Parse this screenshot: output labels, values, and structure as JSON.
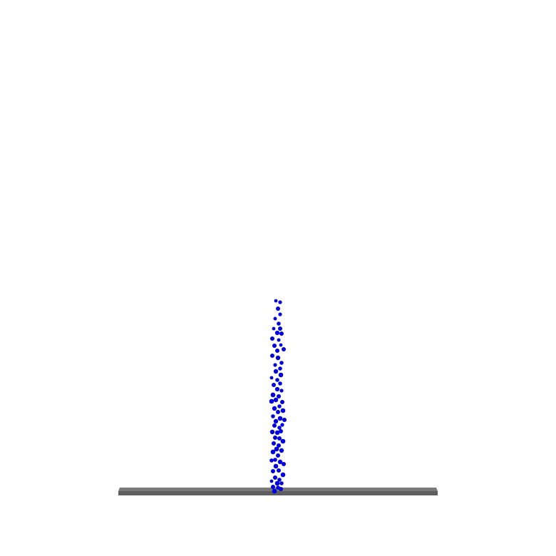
{
  "scene": {
    "background_color": "#ffffff",
    "platform": {
      "top_color": "#7a7a7a",
      "front_color": "#5f5f5f"
    },
    "particles": {
      "color": "#0000dd",
      "count": 74
    }
  }
}
